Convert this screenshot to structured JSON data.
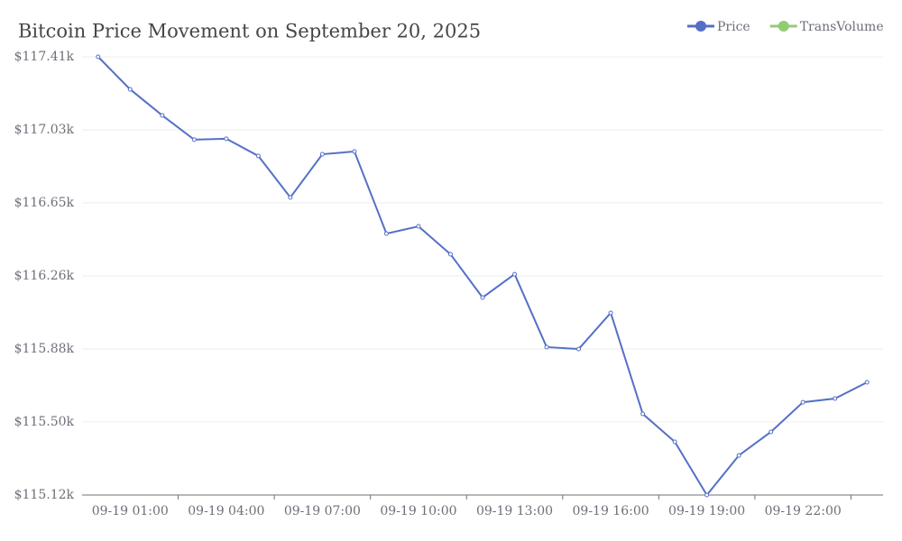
{
  "chart_data": {
    "type": "line",
    "title": "Bitcoin Price Movement on September 20, 2025",
    "categories": [
      null,
      "09-19 01:00",
      null,
      null,
      "09-19 04:00",
      null,
      null,
      "09-19 07:00",
      null,
      null,
      "09-19 10:00",
      null,
      null,
      "09-19 13:00",
      null,
      null,
      "09-19 16:00",
      null,
      null,
      "09-19 19:00",
      null,
      null,
      "09-19 22:00",
      null,
      null
    ],
    "series": [
      {
        "name": "Price",
        "color": "#5470c6",
        "values": [
          117410,
          117240,
          117104,
          116977,
          116982,
          116892,
          116675,
          116901,
          116915,
          116486,
          116524,
          116378,
          116152,
          116274,
          115893,
          115883,
          116072,
          115544,
          115398,
          115120,
          115327,
          115450,
          115605,
          115624,
          115709
        ]
      },
      {
        "name": "TransVolume",
        "color": "#91cc75"
      }
    ],
    "ylim": [
      115120,
      117410
    ],
    "yticks": [
      {
        "value": 115120,
        "label": "$115.12k"
      },
      {
        "value": 115502,
        "label": "$115.50k"
      },
      {
        "value": 115883,
        "label": "$115.88k"
      },
      {
        "value": 116265,
        "label": "$116.26k"
      },
      {
        "value": 116647,
        "label": "$116.65k"
      },
      {
        "value": 117028,
        "label": "$117.03k"
      },
      {
        "value": 117410,
        "label": "$117.41k"
      }
    ],
    "grid": true,
    "legend": "top-right"
  }
}
